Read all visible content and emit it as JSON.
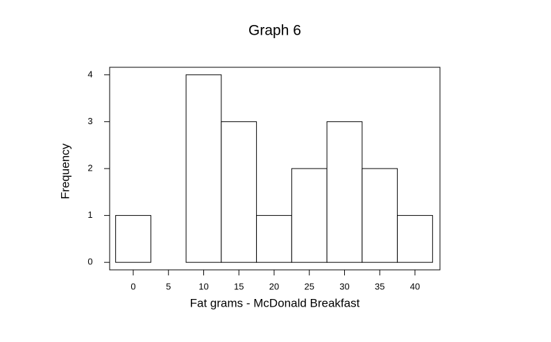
{
  "chart_data": {
    "type": "histogram",
    "title": "Graph 6",
    "x_label": "Fat grams - McDonald Breakfast",
    "y_label": "Frequency",
    "bins": [
      -2.5,
      2.5,
      7.5,
      12.5,
      17.5,
      22.5,
      27.5,
      32.5,
      37.5,
      42.5
    ],
    "values": [
      1,
      0,
      4,
      3,
      1,
      2,
      3,
      2,
      1
    ],
    "color": "#ffffff",
    "xlim": [
      -3.35,
      43.55
    ],
    "ylim": [
      -0.16,
      4.16
    ],
    "xticks": [
      0,
      5,
      10,
      15,
      20,
      25,
      30,
      35,
      40
    ],
    "yticks": [
      0,
      1,
      2,
      3,
      4
    ],
    "grid": false
  }
}
